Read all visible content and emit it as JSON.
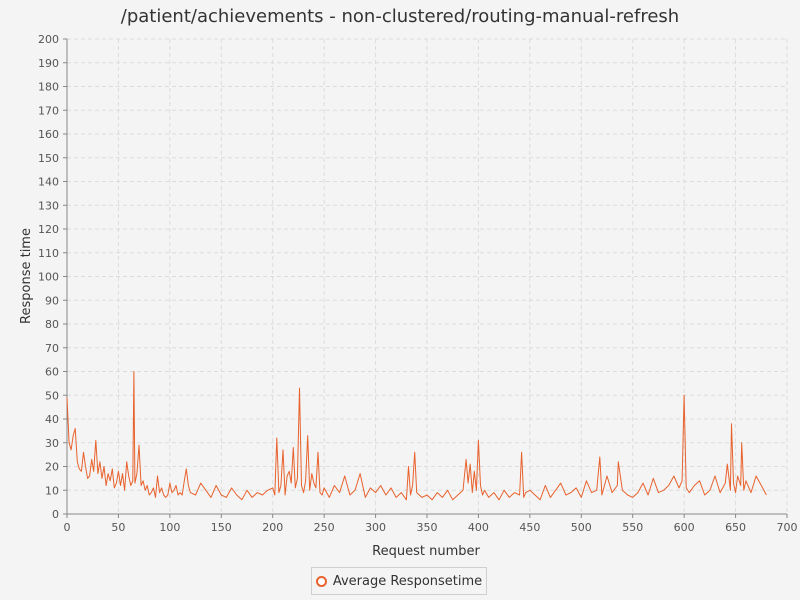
{
  "chart_data": {
    "type": "line",
    "title": "/patient/achievements - non-clustered/routing-manual-refresh",
    "xlabel": "Request number",
    "ylabel": "Response time",
    "xlim": [
      0,
      700
    ],
    "ylim": [
      0,
      200
    ],
    "x_ticks": [
      0,
      50,
      100,
      150,
      200,
      250,
      300,
      350,
      400,
      450,
      500,
      550,
      600,
      650,
      700
    ],
    "y_ticks": [
      0,
      10,
      20,
      30,
      40,
      50,
      60,
      70,
      80,
      90,
      100,
      110,
      120,
      130,
      140,
      150,
      160,
      170,
      180,
      190,
      200
    ],
    "grid": true,
    "legend_position": "bottom-center",
    "series": [
      {
        "name": "Average Responsetime",
        "color": "#e8622d",
        "x": [
          0,
          2,
          4,
          6,
          8,
          10,
          12,
          14,
          16,
          18,
          20,
          22,
          24,
          26,
          28,
          30,
          32,
          34,
          36,
          38,
          40,
          42,
          44,
          46,
          48,
          50,
          52,
          54,
          56,
          58,
          60,
          62,
          64,
          65,
          66,
          68,
          70,
          72,
          74,
          76,
          78,
          80,
          82,
          84,
          86,
          88,
          90,
          92,
          94,
          96,
          98,
          100,
          102,
          104,
          106,
          108,
          110,
          112,
          114,
          116,
          118,
          120,
          125,
          130,
          135,
          140,
          145,
          150,
          155,
          160,
          165,
          170,
          175,
          180,
          185,
          190,
          195,
          200,
          202,
          204,
          206,
          208,
          210,
          212,
          214,
          216,
          218,
          220,
          222,
          224,
          226,
          228,
          230,
          232,
          234,
          236,
          238,
          240,
          242,
          244,
          246,
          248,
          250,
          255,
          260,
          265,
          270,
          275,
          280,
          285,
          290,
          295,
          300,
          305,
          310,
          315,
          320,
          325,
          330,
          332,
          334,
          336,
          338,
          340,
          345,
          350,
          355,
          360,
          365,
          370,
          375,
          380,
          385,
          388,
          390,
          392,
          394,
          396,
          398,
          400,
          402,
          404,
          406,
          410,
          415,
          420,
          425,
          430,
          435,
          440,
          442,
          444,
          446,
          450,
          455,
          460,
          465,
          470,
          475,
          480,
          485,
          490,
          495,
          500,
          505,
          510,
          515,
          518,
          520,
          525,
          530,
          535,
          536,
          540,
          545,
          550,
          555,
          560,
          565,
          570,
          575,
          580,
          585,
          590,
          595,
          598,
          600,
          602,
          605,
          610,
          615,
          620,
          625,
          630,
          635,
          640,
          642,
          645,
          646,
          648,
          650,
          652,
          655,
          656,
          658,
          660,
          665,
          670,
          675,
          680
        ],
        "values": [
          49,
          30,
          27,
          33,
          36,
          22,
          19,
          18,
          26,
          20,
          15,
          16,
          23,
          18,
          31,
          17,
          22,
          15,
          20,
          12,
          17,
          14,
          19,
          11,
          13,
          18,
          12,
          17,
          10,
          22,
          16,
          12,
          14,
          60,
          13,
          17,
          29,
          12,
          14,
          10,
          12,
          8,
          9,
          11,
          7,
          16,
          9,
          11,
          8,
          7,
          8,
          13,
          9,
          10,
          12,
          8,
          9,
          8,
          14,
          19,
          12,
          9,
          8,
          13,
          10,
          7,
          12,
          8,
          7,
          11,
          8,
          6,
          10,
          7,
          9,
          8,
          10,
          11,
          8,
          32,
          9,
          12,
          27,
          8,
          16,
          18,
          13,
          28,
          11,
          15,
          53,
          12,
          9,
          14,
          33,
          10,
          17,
          13,
          11,
          26,
          9,
          8,
          11,
          7,
          12,
          9,
          16,
          8,
          10,
          17,
          7,
          11,
          9,
          12,
          8,
          11,
          7,
          9,
          6,
          20,
          8,
          12,
          26,
          9,
          7,
          8,
          6,
          9,
          7,
          10,
          6,
          8,
          10,
          23,
          13,
          21,
          9,
          18,
          10,
          31,
          12,
          8,
          10,
          7,
          9,
          6,
          10,
          7,
          9,
          8,
          26,
          7,
          9,
          10,
          8,
          6,
          12,
          7,
          10,
          13,
          8,
          9,
          11,
          7,
          14,
          9,
          10,
          24,
          8,
          16,
          9,
          12,
          22,
          10,
          8,
          7,
          9,
          13,
          8,
          15,
          9,
          10,
          12,
          16,
          11,
          14,
          50,
          11,
          9,
          12,
          14,
          8,
          10,
          16,
          9,
          13,
          21,
          10,
          38,
          13,
          9,
          16,
          12,
          30,
          10,
          14,
          9,
          16,
          12,
          8
        ]
      }
    ]
  },
  "legend": {
    "label": "Average Responsetime"
  }
}
